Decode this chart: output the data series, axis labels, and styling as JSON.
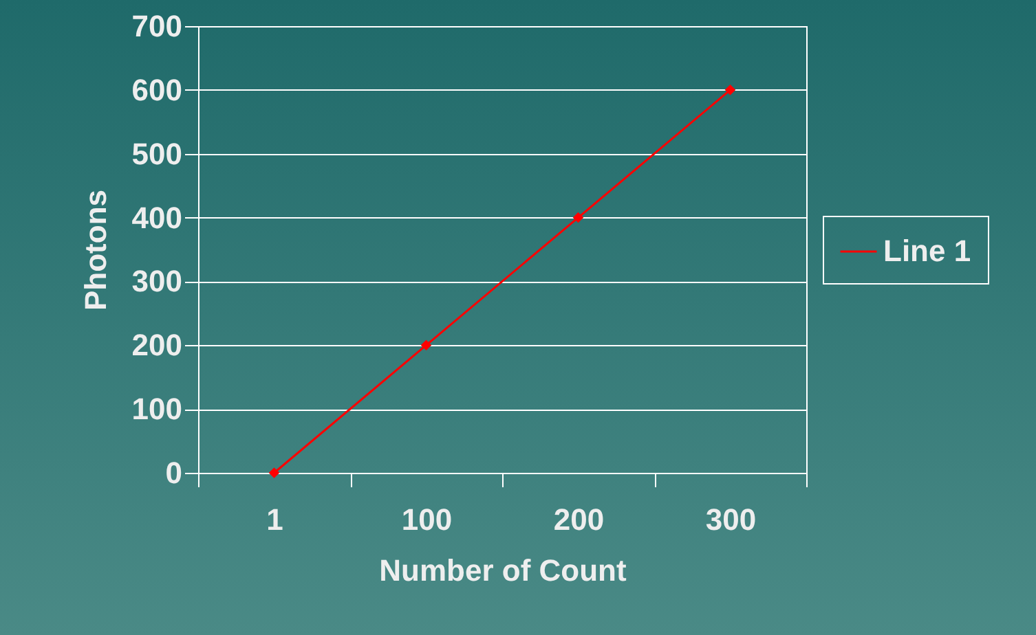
{
  "chart_data": {
    "type": "line",
    "xlabel": "Number of Count",
    "ylabel": "Photons",
    "categories": [
      "1",
      "100",
      "200",
      "300"
    ],
    "series": [
      {
        "name": "Line 1",
        "color": "#ff0000",
        "values": [
          0,
          200,
          400,
          600
        ]
      }
    ],
    "ylim": [
      0,
      700
    ],
    "yticks": [
      0,
      100,
      200,
      300,
      400,
      500,
      600,
      700
    ],
    "grid": "y",
    "legend": "right",
    "marker": "diamond"
  }
}
